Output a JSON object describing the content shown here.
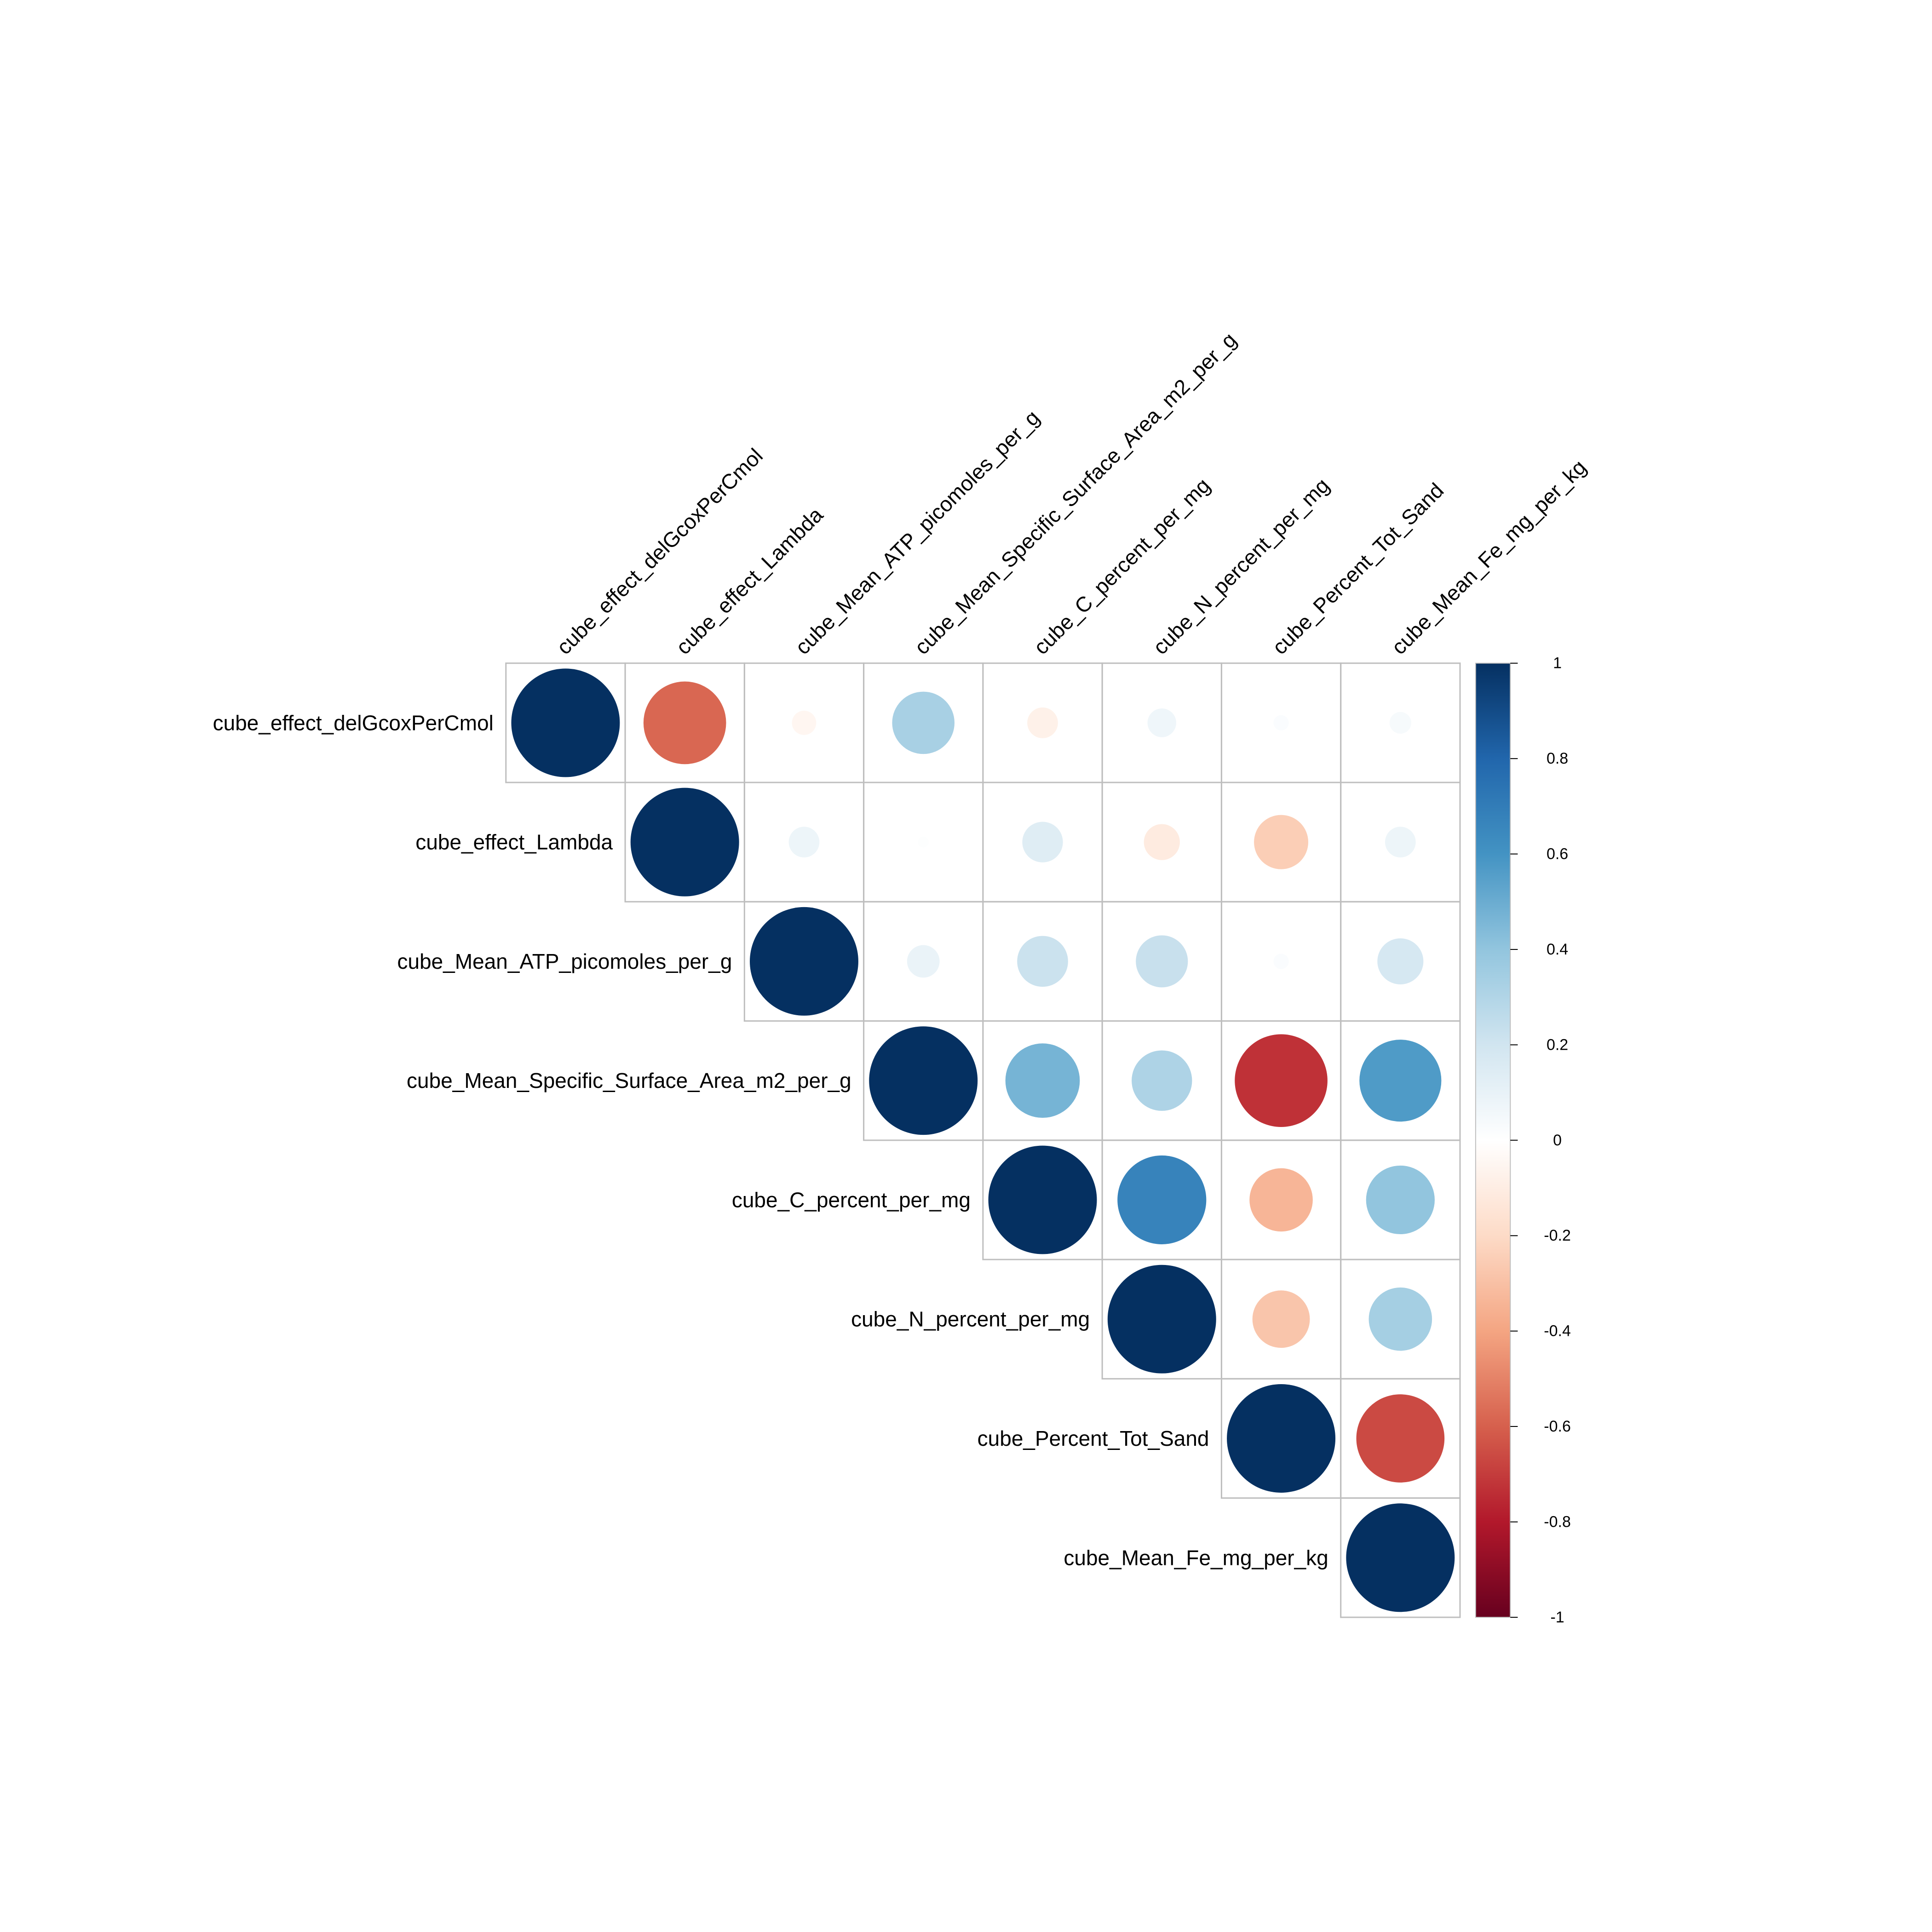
{
  "chart_data": {
    "type": "heatmap",
    "variables": [
      "cube_effect_delGcoxPerCmol",
      "cube_effect_Lambda",
      "cube_Mean_ATP_picomoles_per_g",
      "cube_Mean_Specific_Surface_Area_m2_per_g",
      "cube_C_percent_per_mg",
      "cube_N_percent_per_mg",
      "cube_Percent_Tot_Sand",
      "cube_Mean_Fe_mg_per_kg"
    ],
    "matrix": [
      [
        1,
        -0.58,
        -0.05,
        0.33,
        -0.08,
        0.07,
        0.02,
        0.04
      ],
      [
        null,
        1,
        0.08,
        0.01,
        0.14,
        -0.11,
        -0.25,
        0.08
      ],
      [
        null,
        null,
        1,
        0.09,
        0.22,
        0.23,
        0.02,
        0.18
      ],
      [
        null,
        null,
        null,
        1,
        0.47,
        0.31,
        -0.73,
        0.57
      ],
      [
        null,
        null,
        null,
        null,
        1,
        0.67,
        -0.34,
        0.4
      ],
      [
        null,
        null,
        null,
        null,
        null,
        1,
        -0.28,
        0.34
      ],
      [
        null,
        null,
        null,
        null,
        null,
        null,
        1,
        -0.66
      ],
      [
        null,
        null,
        null,
        null,
        null,
        null,
        null,
        1
      ]
    ],
    "shape": "upper-triangle",
    "marker": "circle",
    "color_scale": {
      "range": [
        -1,
        1
      ],
      "ticks": [
        "1",
        "0.8",
        "0.6",
        "0.4",
        "0.2",
        "0",
        "-0.2",
        "-0.4",
        "-0.6",
        "-0.8",
        "-1"
      ],
      "stops": [
        "#67001F",
        "#B2182B",
        "#D6604D",
        "#F4A582",
        "#FDDBC7",
        "#FFFFFF",
        "#D1E5F0",
        "#92C5DE",
        "#4393C3",
        "#2166AC",
        "#053061"
      ]
    },
    "legend_placement": "right"
  }
}
